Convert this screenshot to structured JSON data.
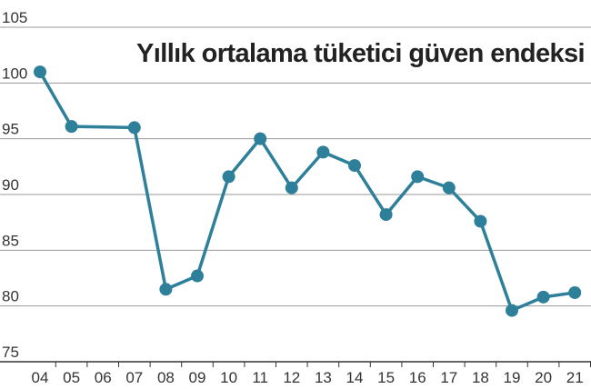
{
  "chart_data": {
    "type": "line",
    "title": "Yıllık ortalama tüketici güven endeksi",
    "xlabel": "",
    "ylabel": "",
    "categories": [
      "04",
      "05",
      "06",
      "07",
      "08",
      "09",
      "10",
      "11",
      "12",
      "13",
      "14",
      "15",
      "16",
      "17",
      "18",
      "19",
      "20",
      "21"
    ],
    "series": [
      {
        "values": [
          101.0,
          96.1,
          null,
          96.0,
          81.5,
          82.7,
          91.6,
          95.0,
          90.6,
          93.8,
          92.6,
          88.2,
          91.6,
          90.6,
          87.6,
          79.6,
          80.8,
          81.2
        ]
      }
    ],
    "yticks": [
      75,
      80,
      85,
      90,
      95,
      100,
      105
    ],
    "ylim": [
      75,
      105
    ],
    "grid": true,
    "legend": "none",
    "colors": {
      "line": "#2e7f99",
      "marker": "#2e7f99",
      "grid": "#9a9a9a",
      "axis": "#333333"
    }
  }
}
